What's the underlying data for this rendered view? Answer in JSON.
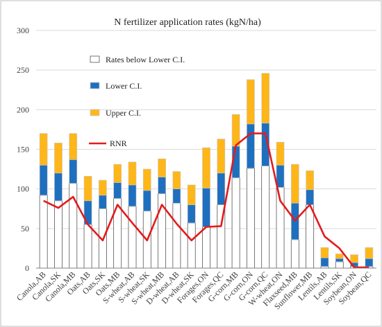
{
  "chart_data": {
    "type": "bar",
    "title": "N fertilizer application rates (kgN/ha)",
    "xlabel": "",
    "ylabel": "",
    "ylim": [
      0,
      300
    ],
    "yticks": [
      0,
      50,
      100,
      150,
      200,
      250,
      300
    ],
    "grid": true,
    "legend_position": "top-left",
    "stacked": true,
    "categories": [
      "Canola,AB",
      "Canola,SK",
      "Canola,MB",
      "Oats,AB",
      "Oats,SK",
      "Oats,MB",
      "S-wheat,AB",
      "S-wheat,SK",
      "S-wheat,MB",
      "D-wheat,AB",
      "D-wheat,SK",
      "Forages,ON",
      "Forages,QC",
      "G-corn,MB",
      "G-corn,ON",
      "G-corn,QC",
      "W-wheat,ON",
      "Flaxseed,MB",
      "Sunflower,MB",
      "Lentils,AB",
      "Lentils,SK",
      "Soybean,ON",
      "Soybean,QC"
    ],
    "series": [
      {
        "name": "Rates below Lower C.I.",
        "type": "bar",
        "color": "#ffffff",
        "values": [
          92,
          85,
          107,
          55,
          75,
          88,
          78,
          72,
          94,
          82,
          57,
          52,
          80,
          114,
          126,
          129,
          102,
          36,
          80,
          2,
          8,
          2,
          2
        ]
      },
      {
        "name": "Lower C.I.",
        "type": "bar",
        "color": "#1f6fbf",
        "values": [
          38,
          35,
          30,
          30,
          17,
          20,
          27,
          26,
          21,
          18,
          23,
          49,
          40,
          40,
          56,
          54,
          28,
          46,
          19,
          11,
          4,
          5,
          10
        ]
      },
      {
        "name": "Upper C.I.",
        "type": "bar",
        "color": "#ffb619",
        "values": [
          40,
          38,
          33,
          31,
          19,
          23,
          29,
          27,
          23,
          22,
          25,
          51,
          43,
          40,
          56,
          63,
          29,
          49,
          24,
          13,
          6,
          10,
          14
        ]
      },
      {
        "name": "RNR",
        "type": "line",
        "color": "#e41a1c",
        "values": [
          85,
          76,
          90,
          55,
          35,
          80,
          57,
          35,
          80,
          56,
          35,
          52,
          53,
          155,
          170,
          170,
          85,
          60,
          80,
          40,
          25,
          1,
          1
        ]
      }
    ]
  }
}
